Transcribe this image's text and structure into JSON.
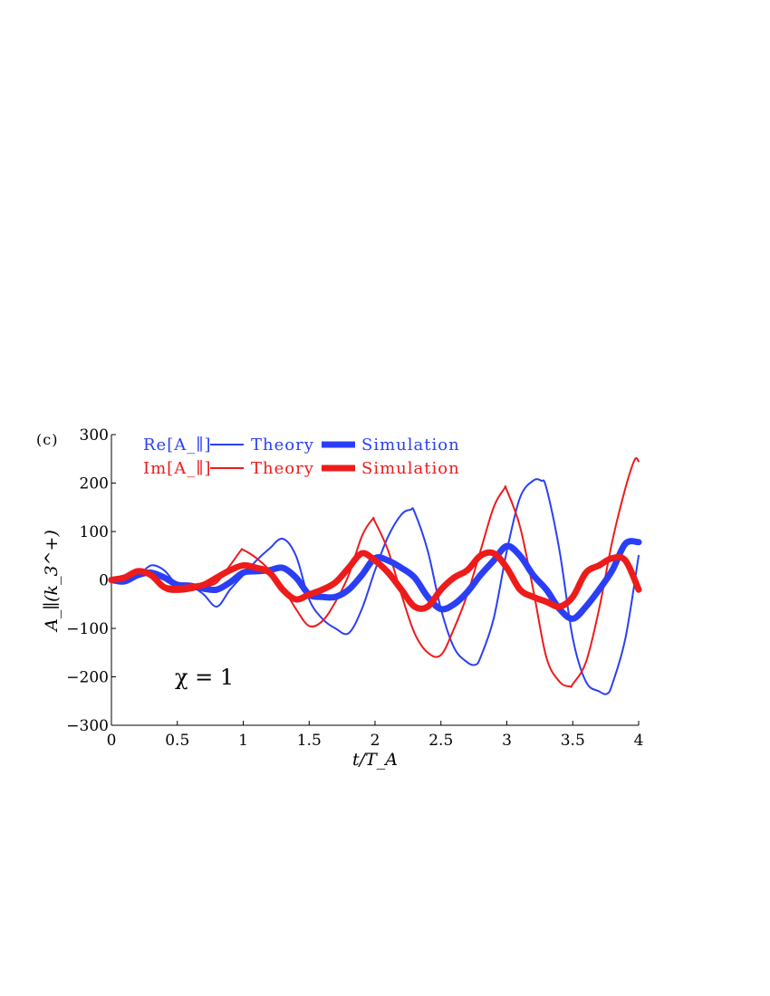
{
  "chart_data": {
    "type": "line",
    "panel_label": "(c)",
    "xlabel": "t/T_A",
    "ylabel": "A_∥(k_3^+)",
    "xlim": [
      0,
      4
    ],
    "ylim": [
      -300,
      300
    ],
    "x_ticks": [
      "0",
      "0.5",
      "1",
      "1.5",
      "2",
      "2.5",
      "3",
      "3.5",
      "4"
    ],
    "y_ticks": [
      "300",
      "200",
      "100",
      "0",
      "−100",
      "−200",
      "−300"
    ],
    "annotation": "χ = 1",
    "legend": {
      "placement": "top-left",
      "rows": [
        {
          "label": "Re[A_∥]",
          "theory": "Theory",
          "simulation": "Simulation",
          "color": "#2a3ff5"
        },
        {
          "label": "Im[A_∥]",
          "theory": "Theory",
          "simulation": "Simulation",
          "color": "#ee1b1b"
        }
      ]
    },
    "series": [
      {
        "name": "Re[A_∥] Theory",
        "color": "#2a3ff5",
        "style": "thin",
        "x": [
          0,
          0.1,
          0.2,
          0.3,
          0.4,
          0.5,
          0.6,
          0.7,
          0.8,
          0.9,
          1.0,
          1.1,
          1.2,
          1.3,
          1.4,
          1.5,
          1.6,
          1.7,
          1.8,
          1.9,
          2.0,
          2.1,
          2.2,
          2.27,
          2.3,
          2.4,
          2.5,
          2.6,
          2.7,
          2.76,
          2.8,
          2.9,
          3.0,
          3.1,
          3.2,
          3.26,
          3.3,
          3.4,
          3.5,
          3.6,
          3.7,
          3.76,
          3.8,
          3.9,
          4.0
        ],
        "y": [
          0,
          -2,
          8,
          30,
          20,
          -10,
          -12,
          -30,
          -55,
          -20,
          10,
          40,
          65,
          85,
          50,
          -40,
          -80,
          -100,
          -110,
          -60,
          20,
          90,
          135,
          145,
          140,
          60,
          -60,
          -140,
          -170,
          -175,
          -160,
          -80,
          60,
          170,
          205,
          205,
          190,
          60,
          -120,
          -210,
          -230,
          -235,
          -215,
          -120,
          50
        ]
      },
      {
        "name": "Re[A_∥] Simulation",
        "color": "#2a3ff5",
        "style": "thick",
        "x": [
          0,
          0.1,
          0.2,
          0.3,
          0.4,
          0.5,
          0.6,
          0.7,
          0.8,
          0.9,
          1.0,
          1.1,
          1.2,
          1.3,
          1.4,
          1.5,
          1.6,
          1.7,
          1.8,
          1.9,
          2.0,
          2.1,
          2.2,
          2.3,
          2.4,
          2.5,
          2.6,
          2.7,
          2.8,
          2.9,
          3.0,
          3.1,
          3.2,
          3.3,
          3.4,
          3.5,
          3.6,
          3.7,
          3.8,
          3.9,
          4.0
        ],
        "y": [
          0,
          -3,
          10,
          15,
          5,
          -10,
          -12,
          -18,
          -20,
          -5,
          15,
          18,
          20,
          25,
          5,
          -30,
          -35,
          -35,
          -20,
          10,
          45,
          40,
          25,
          5,
          -35,
          -60,
          -50,
          -25,
          10,
          40,
          70,
          50,
          10,
          -20,
          -60,
          -80,
          -55,
          -20,
          20,
          75,
          78
        ]
      },
      {
        "name": "Im[A_∥] Theory",
        "color": "#ee1b1b",
        "style": "thin",
        "x": [
          0,
          0.1,
          0.2,
          0.3,
          0.4,
          0.5,
          0.6,
          0.7,
          0.8,
          0.9,
          0.98,
          1.0,
          1.1,
          1.2,
          1.3,
          1.4,
          1.5,
          1.6,
          1.7,
          1.8,
          1.9,
          1.98,
          2.0,
          2.1,
          2.2,
          2.3,
          2.4,
          2.5,
          2.6,
          2.7,
          2.8,
          2.9,
          2.98,
          3.0,
          3.1,
          3.2,
          3.3,
          3.4,
          3.48,
          3.5,
          3.6,
          3.7,
          3.8,
          3.9,
          3.97,
          4.0
        ],
        "y": [
          0,
          8,
          20,
          12,
          -20,
          -25,
          -22,
          -15,
          -5,
          30,
          60,
          62,
          45,
          20,
          -15,
          -60,
          -95,
          -85,
          -45,
          10,
          90,
          125,
          120,
          60,
          -30,
          -110,
          -150,
          -155,
          -100,
          -30,
          60,
          150,
          188,
          185,
          110,
          -20,
          -160,
          -210,
          -220,
          -215,
          -170,
          -60,
          80,
          190,
          248,
          245
        ]
      },
      {
        "name": "Im[A_∥] Simulation",
        "color": "#ee1b1b",
        "style": "thick",
        "x": [
          0,
          0.1,
          0.2,
          0.3,
          0.4,
          0.5,
          0.6,
          0.7,
          0.8,
          0.9,
          1.0,
          1.1,
          1.2,
          1.3,
          1.4,
          1.5,
          1.6,
          1.7,
          1.8,
          1.9,
          2.0,
          2.1,
          2.2,
          2.3,
          2.4,
          2.5,
          2.6,
          2.7,
          2.8,
          2.9,
          3.0,
          3.1,
          3.2,
          3.3,
          3.4,
          3.5,
          3.6,
          3.7,
          3.8,
          3.9,
          4.0
        ],
        "y": [
          0,
          5,
          18,
          10,
          -15,
          -18,
          -15,
          -10,
          5,
          20,
          30,
          25,
          15,
          -20,
          -40,
          -30,
          -20,
          -5,
          25,
          55,
          40,
          15,
          -20,
          -55,
          -55,
          -20,
          5,
          20,
          50,
          55,
          25,
          -20,
          -35,
          -45,
          -55,
          -35,
          15,
          30,
          45,
          40,
          -20
        ]
      }
    ]
  }
}
